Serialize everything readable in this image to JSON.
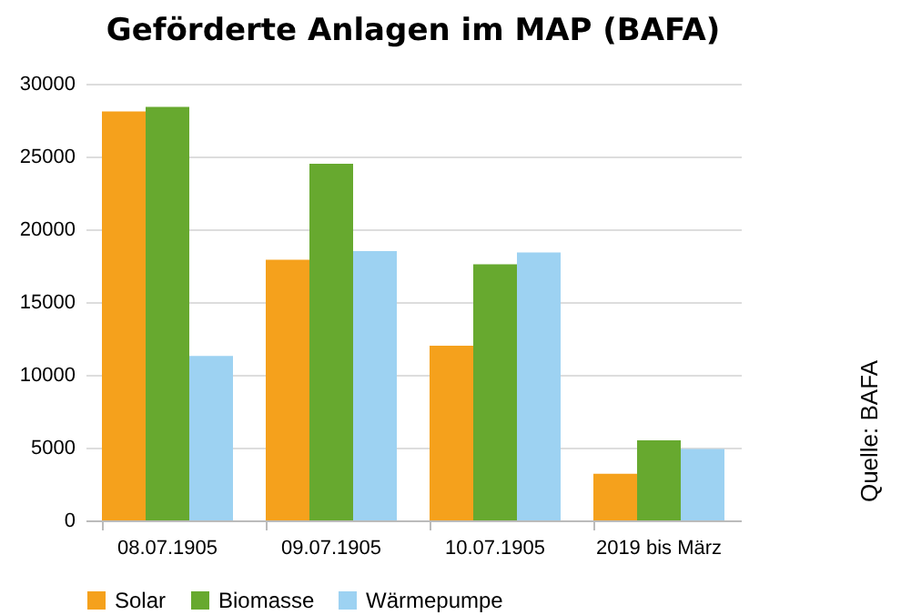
{
  "chart_data": {
    "type": "bar",
    "title": "Geförderte Anlagen im MAP (BAFA)",
    "categories": [
      "08.07.1905",
      "09.07.1905",
      "10.07.1905",
      "2019 bis März"
    ],
    "series": [
      {
        "name": "Solar",
        "color": "#f5a11c",
        "values": [
          28100,
          17900,
          12000,
          3200
        ]
      },
      {
        "name": "Biomasse",
        "color": "#67a92f",
        "values": [
          28400,
          24500,
          17600,
          5500
        ]
      },
      {
        "name": "Wärmepumpe",
        "color": "#9dd2f2",
        "values": [
          11300,
          18500,
          18400,
          4900
        ]
      }
    ],
    "ylim": [
      0,
      30000
    ],
    "yticks": [
      0,
      5000,
      10000,
      15000,
      20000,
      25000,
      30000
    ],
    "grid": "y",
    "legend": "bottom",
    "annotations": [
      "Quelle: BAFA"
    ]
  }
}
